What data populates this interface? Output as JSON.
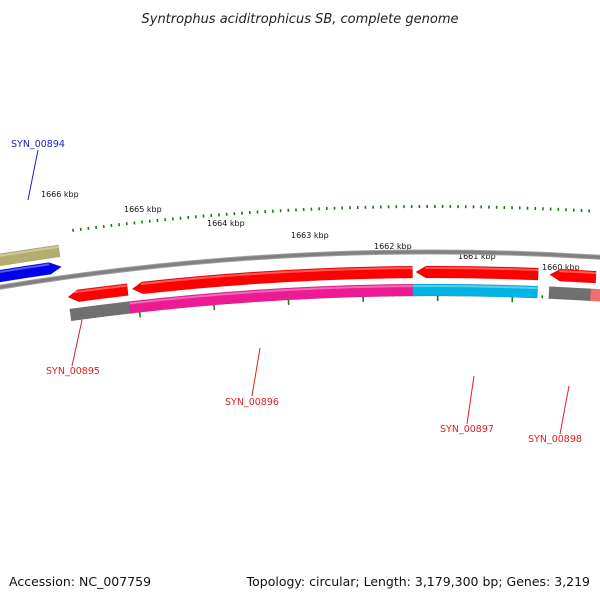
{
  "title": "Syntrophus aciditrophicus SB, complete genome",
  "footer": {
    "accession": "Accession: NC_007759",
    "summary": "Topology: circular; Length: 3,179,300 bp; Genes: 3,219"
  },
  "colors": {
    "background": "#ffffff",
    "backbone": "#808080",
    "tick": "#1a7a1a",
    "cds_red": "#ff0000",
    "cds_magenta": "#ee1a93",
    "cds_cyan": "#00b4e6",
    "cds_blue": "#0000ee",
    "cds_olive": "#b4ae6e",
    "gene_gray": "#707070",
    "gene_pink": "#f07070",
    "label_red": "#e02020",
    "label_blue": "#2020c0"
  },
  "map": {
    "kbp_ticks": [
      "1666 kbp",
      "1665 kbp",
      "1664 kbp",
      "1663 kbp",
      "1662 kbp",
      "1661 kbp",
      "1660 kbp"
    ],
    "gene_labels": [
      {
        "name": "SYN_00894",
        "color": "label_blue"
      },
      {
        "name": "SYN_00895",
        "color": "label_red"
      },
      {
        "name": "SYN_00896",
        "color": "label_red"
      },
      {
        "name": "SYN_00897",
        "color": "label_red"
      },
      {
        "name": "SYN_00898",
        "color": "label_red"
      }
    ]
  }
}
